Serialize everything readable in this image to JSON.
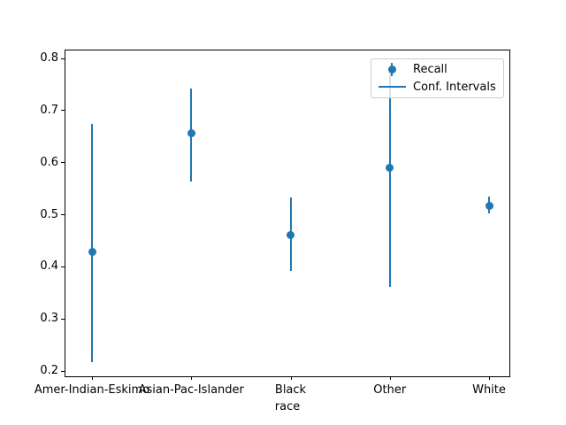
{
  "chart_data": {
    "type": "scatter",
    "subtype": "errorbar",
    "title": "",
    "xlabel": "race",
    "ylabel": "",
    "categories": [
      "Amer-Indian-Eskimo",
      "Asian-Pac-Islander",
      "Black",
      "Other",
      "White"
    ],
    "series": [
      {
        "name": "Recall",
        "values": [
          0.428,
          0.657,
          0.461,
          0.59,
          0.518
        ]
      },
      {
        "name": "Conf. Intervals",
        "ci_low": [
          0.218,
          0.564,
          0.392,
          0.362,
          0.503
        ],
        "ci_high": [
          0.674,
          0.742,
          0.533,
          0.785,
          0.535
        ]
      }
    ],
    "yticks": [
      0.2,
      0.3,
      0.4,
      0.5,
      0.6,
      0.7,
      0.8
    ],
    "ylim": [
      0.19,
      0.8155
    ],
    "grid": false,
    "legend": {
      "position": "upper right",
      "entries": [
        {
          "label": "Recall",
          "marker": "point-with-errorbar-icon"
        },
        {
          "label": "Conf. Intervals",
          "marker": "line-icon"
        }
      ]
    },
    "colors": {
      "series": "#1f77b4",
      "spine": "#000000",
      "legend_border": "#cccccc",
      "background": "#ffffff",
      "text": "#000000"
    }
  }
}
